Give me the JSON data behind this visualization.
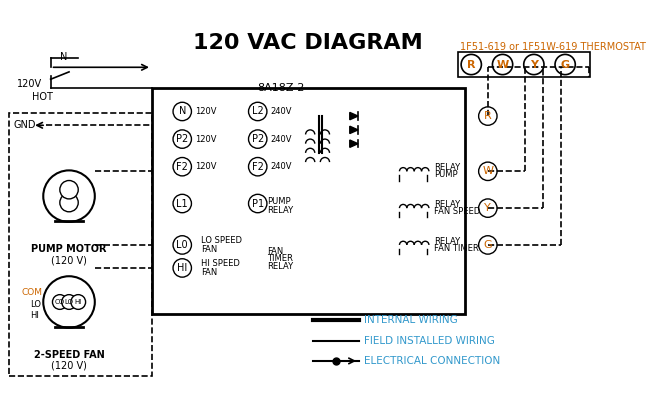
{
  "title": "120 VAC DIAGRAM",
  "title_fontsize": 16,
  "title_color": "#000000",
  "thermostat_label": "1F51-619 or 1F51W-619 THERMOSTAT",
  "thermostat_color": "#cc6600",
  "control_box_label": "8A18Z-2",
  "terminals": [
    "R",
    "W",
    "Y",
    "G"
  ],
  "terminal_color": "#cc6600",
  "left_labels": [
    "N",
    "120V",
    "HOT",
    "GND"
  ],
  "pump_motor_label": "PUMP MOTOR\n(120 V)",
  "fan_label": "2-SPEED FAN\n(120 V)",
  "fan_ports": [
    "LO",
    "HI",
    "COM"
  ],
  "legend_items": [
    "INTERNAL WIRING",
    "FIELD INSTALLED WIRING",
    "ELECTRICAL CONNECTION"
  ],
  "legend_color": "#3399cc",
  "bg_color": "#ffffff",
  "line_color": "#000000",
  "dashed_color": "#000000"
}
